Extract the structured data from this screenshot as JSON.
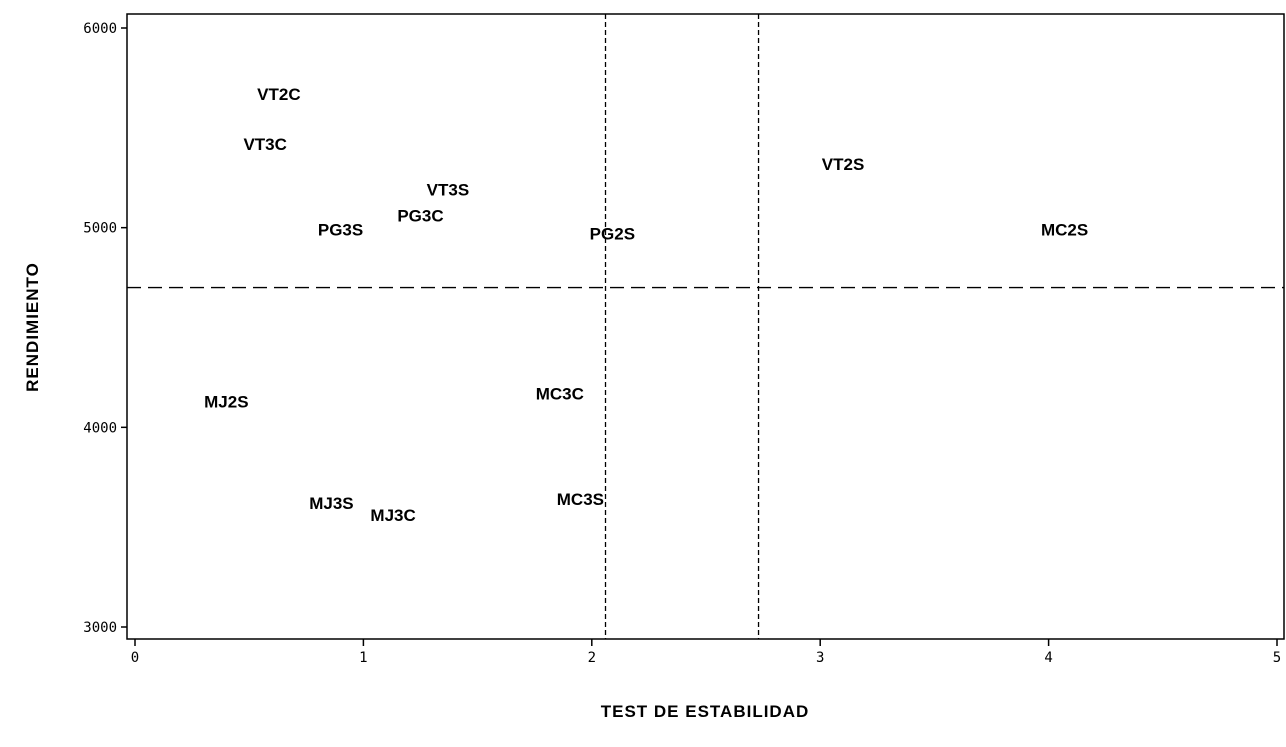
{
  "chart_data": {
    "type": "scatter",
    "title": "",
    "xlabel": "TEST DE ESTABILIDAD",
    "ylabel": "RENDIMIENTO",
    "xlim": [
      0,
      5
    ],
    "ylim": [
      3000,
      6000
    ],
    "xticks": [
      0,
      1,
      2,
      3,
      4,
      5
    ],
    "xtick_labels": [
      "0",
      "1",
      "2",
      "3",
      "4",
      "5"
    ],
    "yticks": [
      3000,
      4000,
      5000,
      6000
    ],
    "ytick_labels": [
      "3000",
      "4000",
      "5000",
      "6000"
    ],
    "grid": false,
    "reference_lines": {
      "vertical": [
        2.06,
        2.73
      ],
      "horizontal": [
        4700
      ]
    },
    "points": [
      {
        "label": "VT2C",
        "x": 0.63,
        "y": 5670
      },
      {
        "label": "VT3C",
        "x": 0.57,
        "y": 5420
      },
      {
        "label": "VT3S",
        "x": 1.37,
        "y": 5190
      },
      {
        "label": "PG3C",
        "x": 1.25,
        "y": 5060
      },
      {
        "label": "PG3S",
        "x": 0.9,
        "y": 4990
      },
      {
        "label": "PG2S",
        "x": 2.09,
        "y": 4970
      },
      {
        "label": "VT2S",
        "x": 3.1,
        "y": 5320
      },
      {
        "label": "MC2S",
        "x": 4.07,
        "y": 4990
      },
      {
        "label": "MJ2S",
        "x": 0.4,
        "y": 4130
      },
      {
        "label": "MC3C",
        "x": 1.86,
        "y": 4170
      },
      {
        "label": "MJ3S",
        "x": 0.86,
        "y": 3620
      },
      {
        "label": "MJ3C",
        "x": 1.13,
        "y": 3560
      },
      {
        "label": "MC3S",
        "x": 1.95,
        "y": 3640
      }
    ]
  }
}
